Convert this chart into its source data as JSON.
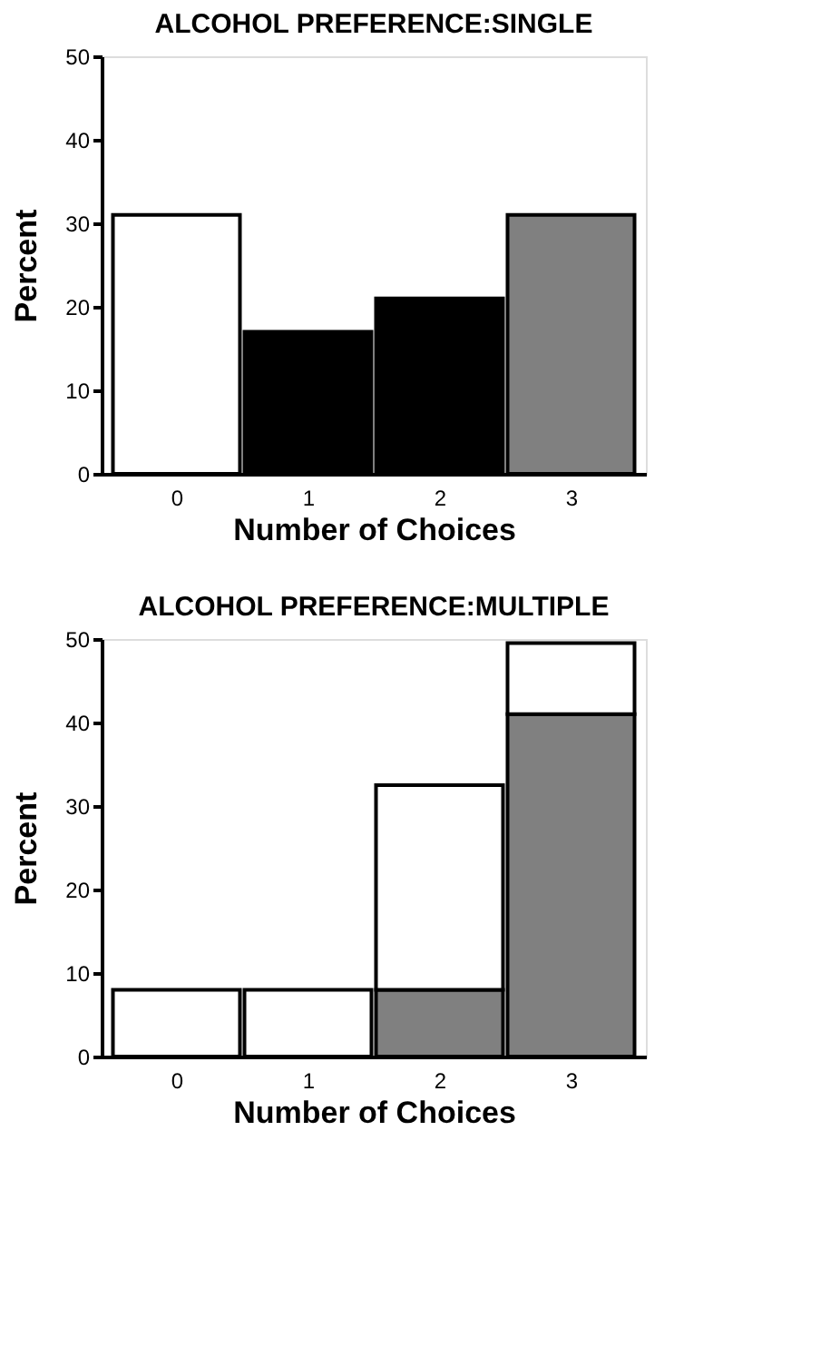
{
  "chart_data": [
    {
      "type": "bar",
      "title": "ALCOHOL PREFERENCE:SINGLE",
      "xlabel": "Number of Choices",
      "ylabel": "Percent",
      "categories": [
        "0",
        "1",
        "2",
        "3"
      ],
      "values": [
        31,
        17,
        21,
        31
      ],
      "colors": [
        "#ffffff",
        "#000000",
        "#000000",
        "#808080"
      ],
      "ylim": [
        0,
        50
      ],
      "yticks": [
        0,
        10,
        20,
        30,
        40,
        50
      ],
      "grid": false,
      "legend": false
    },
    {
      "type": "bar",
      "title": "ALCOHOL PREFERENCE:MULTIPLE",
      "xlabel": "Number of Choices",
      "ylabel": "Percent",
      "categories": [
        "0",
        "1",
        "2",
        "3"
      ],
      "stacked": true,
      "series": [
        {
          "color": "#808080",
          "values": [
            null,
            null,
            8,
            41
          ]
        },
        {
          "color": "#ffffff",
          "values": [
            8,
            8,
            24.5,
            8.5
          ]
        }
      ],
      "ylim": [
        0,
        50
      ],
      "yticks": [
        0,
        10,
        20,
        30,
        40,
        50
      ],
      "grid": false,
      "legend": false
    }
  ]
}
